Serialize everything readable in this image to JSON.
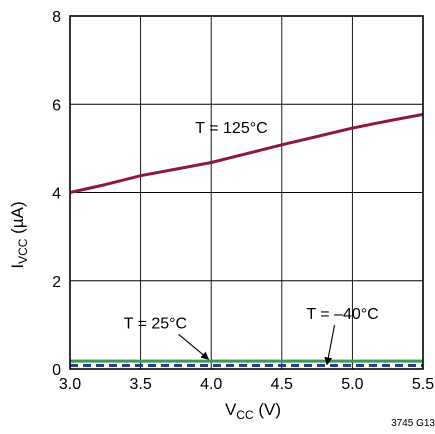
{
  "chart_data": {
    "type": "line",
    "title": "",
    "xlabel": {
      "main": "V",
      "sub": "CC",
      "unit": " (V)"
    },
    "ylabel": {
      "main": "I",
      "sub": "VCC",
      "unit": " (µA)"
    },
    "xlim": [
      3.0,
      5.5
    ],
    "ylim": [
      0,
      8
    ],
    "xticks": [
      3.0,
      3.5,
      4.0,
      4.5,
      5.0,
      5.5
    ],
    "xtick_labels": [
      "3.0",
      "3.5",
      "4.0",
      "4.5",
      "5.0",
      "5.5"
    ],
    "yticks": [
      0,
      2,
      4,
      6,
      8
    ],
    "ytick_labels": [
      "0",
      "2",
      "4",
      "6",
      "8"
    ],
    "grid": true,
    "series": [
      {
        "name": "T = 125°C",
        "color": "#8b1a3c",
        "dash": "solid",
        "x": [
          3.0,
          3.25,
          3.5,
          3.75,
          4.0,
          4.25,
          4.5,
          4.75,
          5.0,
          5.25,
          5.5
        ],
        "y": [
          4.0,
          4.18,
          4.38,
          4.53,
          4.68,
          4.88,
          5.08,
          5.27,
          5.46,
          5.62,
          5.77
        ]
      },
      {
        "name": "T = 25°C",
        "color": "#3a9a4e",
        "dash": "solid",
        "x": [
          3.0,
          5.5
        ],
        "y": [
          0.18,
          0.18
        ]
      },
      {
        "name": "T = –40°C",
        "color": "#2b3f8f",
        "dash": "dashed",
        "x": [
          3.0,
          5.5
        ],
        "y": [
          0.08,
          0.08
        ]
      }
    ],
    "annotations": [
      {
        "text": "T = 125°C",
        "x": 4.4,
        "y": 5.35,
        "anchor": "end",
        "arrow": false
      },
      {
        "text": "T = 25°C",
        "x": 3.38,
        "y": 0.92,
        "anchor": "start",
        "arrow": true,
        "arrow_to_x": 3.98,
        "arrow_to_y": 0.18
      },
      {
        "text": "T = –40°C",
        "x": 4.93,
        "y": 1.13,
        "anchor": "middle",
        "arrow": true,
        "arrow_to_x": 4.82,
        "arrow_to_y": 0.06
      }
    ],
    "figure_id": "3745 G13"
  }
}
